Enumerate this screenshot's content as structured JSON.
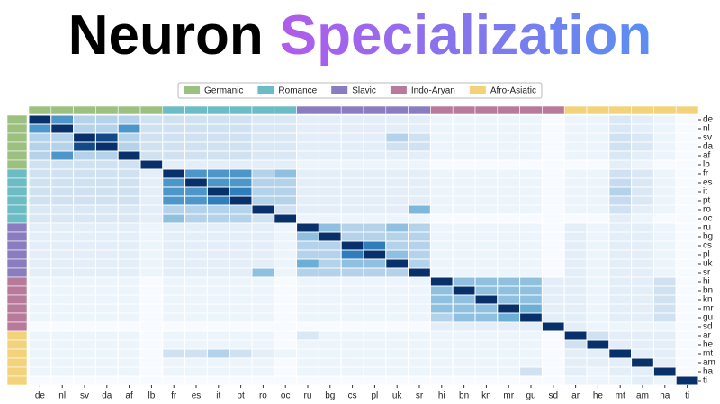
{
  "chart_data": {
    "type": "heatmap",
    "title": [
      "Neuron",
      "Specialization"
    ],
    "title_colors": [
      "#000000",
      "#e23ee6",
      "#5a8ff2"
    ],
    "groups": [
      {
        "name": "Germanic",
        "color": "#9cc07f",
        "languages": [
          "de",
          "nl",
          "sv",
          "da",
          "af",
          "lb"
        ]
      },
      {
        "name": "Romance",
        "color": "#6bbcc4",
        "languages": [
          "fr",
          "es",
          "it",
          "pt",
          "ro",
          "oc"
        ]
      },
      {
        "name": "Slavic",
        "color": "#8a7dbf",
        "languages": [
          "ru",
          "bg",
          "cs",
          "pl",
          "uk",
          "sr"
        ]
      },
      {
        "name": "Indo-Aryan",
        "color": "#b87a9a",
        "languages": [
          "hi",
          "bn",
          "kn",
          "mr",
          "gu",
          "sd"
        ]
      },
      {
        "name": "Afro-Asiatic",
        "color": "#f2d27a",
        "languages": [
          "ar",
          "he",
          "mt",
          "am",
          "ha",
          "ti"
        ]
      }
    ],
    "colorscale": [
      "#f7fbff",
      "#c6dbef",
      "#6baed6",
      "#2171b5",
      "#08306b"
    ],
    "vlim": [
      0,
      1
    ],
    "values": [
      [
        1,
        0.6,
        0.3,
        0.3,
        0.3,
        0.2,
        0.2,
        0.2,
        0.2,
        0.2,
        0.15,
        0.15,
        0.1,
        0.1,
        0.1,
        0.1,
        0.1,
        0.1,
        0.05,
        0.05,
        0.05,
        0.05,
        0.05,
        0,
        0.05,
        0.05,
        0.15,
        0.1,
        0.05,
        0
      ],
      [
        0.6,
        1,
        0.3,
        0.3,
        0.6,
        0.2,
        0.2,
        0.2,
        0.2,
        0.2,
        0.15,
        0.15,
        0.1,
        0.1,
        0.1,
        0.1,
        0.1,
        0.1,
        0.05,
        0.05,
        0.05,
        0.05,
        0.05,
        0,
        0.05,
        0.05,
        0.15,
        0.1,
        0.05,
        0
      ],
      [
        0.3,
        0.3,
        1,
        0.9,
        0.3,
        0.2,
        0.2,
        0.2,
        0.2,
        0.2,
        0.15,
        0.15,
        0.1,
        0.1,
        0.1,
        0.1,
        0.3,
        0.2,
        0.05,
        0.05,
        0.05,
        0.05,
        0.05,
        0,
        0.05,
        0.05,
        0.2,
        0.15,
        0.05,
        0
      ],
      [
        0.3,
        0.3,
        0.9,
        1,
        0.3,
        0.2,
        0.2,
        0.2,
        0.2,
        0.2,
        0.15,
        0.15,
        0.1,
        0.1,
        0.1,
        0.1,
        0.2,
        0.2,
        0.05,
        0.05,
        0.05,
        0.05,
        0.05,
        0,
        0.05,
        0.05,
        0.2,
        0.15,
        0.05,
        0
      ],
      [
        0.3,
        0.6,
        0.3,
        0.3,
        1,
        0.2,
        0.2,
        0.2,
        0.2,
        0.2,
        0.15,
        0.15,
        0.1,
        0.1,
        0.1,
        0.1,
        0.1,
        0.1,
        0.05,
        0.05,
        0.05,
        0.05,
        0.05,
        0,
        0.05,
        0.05,
        0.15,
        0.1,
        0.05,
        0
      ],
      [
        0.2,
        0.2,
        0.2,
        0.2,
        0.2,
        1,
        0.1,
        0.1,
        0.1,
        0.1,
        0.1,
        0.1,
        0.05,
        0.05,
        0.05,
        0.05,
        0.05,
        0.05,
        0,
        0,
        0,
        0,
        0,
        0,
        0,
        0,
        0.1,
        0.05,
        0,
        0
      ],
      [
        0.2,
        0.2,
        0.2,
        0.2,
        0.2,
        0.1,
        1,
        0.6,
        0.6,
        0.6,
        0.3,
        0.4,
        0.1,
        0.1,
        0.1,
        0.1,
        0.1,
        0.1,
        0.05,
        0.05,
        0.05,
        0.05,
        0.05,
        0,
        0.05,
        0.05,
        0.2,
        0.15,
        0.05,
        0
      ],
      [
        0.2,
        0.2,
        0.2,
        0.2,
        0.2,
        0.1,
        0.6,
        1,
        0.6,
        0.6,
        0.3,
        0.3,
        0.1,
        0.1,
        0.1,
        0.1,
        0.1,
        0.1,
        0.05,
        0.05,
        0.05,
        0.05,
        0.05,
        0,
        0.05,
        0.05,
        0.25,
        0.15,
        0.05,
        0
      ],
      [
        0.2,
        0.2,
        0.2,
        0.2,
        0.2,
        0.1,
        0.6,
        0.6,
        1,
        0.7,
        0.3,
        0.3,
        0.1,
        0.1,
        0.1,
        0.1,
        0.1,
        0.1,
        0.05,
        0.05,
        0.05,
        0.05,
        0.05,
        0,
        0.05,
        0.05,
        0.3,
        0.15,
        0.05,
        0
      ],
      [
        0.2,
        0.2,
        0.2,
        0.2,
        0.2,
        0.1,
        0.6,
        0.6,
        0.7,
        1,
        0.3,
        0.3,
        0.1,
        0.1,
        0.1,
        0.1,
        0.1,
        0.1,
        0.05,
        0.05,
        0.05,
        0.05,
        0.05,
        0,
        0.05,
        0.05,
        0.25,
        0.15,
        0.05,
        0
      ],
      [
        0.15,
        0.15,
        0.15,
        0.15,
        0.15,
        0.1,
        0.3,
        0.3,
        0.3,
        0.3,
        1,
        0.2,
        0.1,
        0.1,
        0.1,
        0.1,
        0.1,
        0.45,
        0.05,
        0.05,
        0.05,
        0.05,
        0.05,
        0,
        0.05,
        0.05,
        0.2,
        0.1,
        0.05,
        0
      ],
      [
        0.15,
        0.15,
        0.15,
        0.15,
        0.15,
        0.1,
        0.4,
        0.3,
        0.3,
        0.3,
        0.2,
        1,
        0.05,
        0.05,
        0.05,
        0.05,
        0.05,
        0.05,
        0,
        0,
        0,
        0,
        0,
        0,
        0,
        0,
        0.1,
        0.05,
        0,
        0
      ],
      [
        0.1,
        0.1,
        0.1,
        0.1,
        0.1,
        0.05,
        0.1,
        0.1,
        0.1,
        0.1,
        0.1,
        0.05,
        1,
        0.4,
        0.3,
        0.3,
        0.4,
        0.3,
        0.05,
        0.05,
        0.05,
        0.05,
        0.05,
        0,
        0.1,
        0.05,
        0.1,
        0.1,
        0.05,
        0
      ],
      [
        0.1,
        0.1,
        0.1,
        0.1,
        0.1,
        0.05,
        0.1,
        0.1,
        0.1,
        0.1,
        0.1,
        0.05,
        0.4,
        1,
        0.3,
        0.3,
        0.3,
        0.3,
        0.05,
        0.05,
        0.05,
        0.05,
        0.05,
        0,
        0.1,
        0.05,
        0.1,
        0.1,
        0.05,
        0
      ],
      [
        0.1,
        0.1,
        0.1,
        0.1,
        0.1,
        0.05,
        0.1,
        0.1,
        0.1,
        0.1,
        0.1,
        0.05,
        0.3,
        0.3,
        1,
        0.7,
        0.3,
        0.3,
        0.05,
        0.05,
        0.05,
        0.05,
        0.05,
        0,
        0.1,
        0.05,
        0.1,
        0.1,
        0.05,
        0
      ],
      [
        0.1,
        0.1,
        0.1,
        0.1,
        0.1,
        0.05,
        0.1,
        0.1,
        0.1,
        0.1,
        0.1,
        0.05,
        0.3,
        0.3,
        0.7,
        1,
        0.4,
        0.3,
        0.05,
        0.05,
        0.05,
        0.05,
        0.05,
        0,
        0.1,
        0.05,
        0.1,
        0.1,
        0.05,
        0
      ],
      [
        0.1,
        0.1,
        0.1,
        0.1,
        0.1,
        0.05,
        0.1,
        0.1,
        0.1,
        0.1,
        0.1,
        0.05,
        0.5,
        0.3,
        0.4,
        0.4,
        1,
        0.3,
        0.05,
        0.05,
        0.05,
        0.05,
        0.05,
        0,
        0.1,
        0.05,
        0.1,
        0.1,
        0.05,
        0
      ],
      [
        0.1,
        0.1,
        0.1,
        0.1,
        0.1,
        0.05,
        0.1,
        0.1,
        0.1,
        0.1,
        0.4,
        0.05,
        0.3,
        0.3,
        0.3,
        0.3,
        0.3,
        1,
        0.05,
        0.05,
        0.05,
        0.05,
        0.05,
        0,
        0.1,
        0.05,
        0.1,
        0.1,
        0.05,
        0
      ],
      [
        0.05,
        0.05,
        0.05,
        0.05,
        0.05,
        0,
        0.05,
        0.05,
        0.05,
        0.05,
        0.05,
        0,
        0.05,
        0.05,
        0.05,
        0.05,
        0.05,
        0.05,
        1,
        0.4,
        0.4,
        0.4,
        0.4,
        0.1,
        0.1,
        0.05,
        0.1,
        0.1,
        0.2,
        0
      ],
      [
        0.05,
        0.05,
        0.05,
        0.05,
        0.05,
        0,
        0.05,
        0.05,
        0.05,
        0.05,
        0.05,
        0,
        0.05,
        0.05,
        0.05,
        0.05,
        0.05,
        0.05,
        0.4,
        1,
        0.4,
        0.4,
        0.4,
        0.1,
        0.1,
        0.05,
        0.1,
        0.1,
        0.2,
        0
      ],
      [
        0.05,
        0.05,
        0.05,
        0.05,
        0.05,
        0,
        0.05,
        0.05,
        0.05,
        0.05,
        0.05,
        0,
        0.05,
        0.05,
        0.05,
        0.05,
        0.05,
        0.05,
        0.4,
        0.4,
        1,
        0.4,
        0.4,
        0.1,
        0.1,
        0.05,
        0.1,
        0.1,
        0.2,
        0
      ],
      [
        0.05,
        0.05,
        0.05,
        0.05,
        0.05,
        0,
        0.05,
        0.05,
        0.05,
        0.05,
        0.05,
        0,
        0.05,
        0.05,
        0.05,
        0.05,
        0.05,
        0.05,
        0.4,
        0.4,
        0.4,
        1,
        0.5,
        0.1,
        0.1,
        0.05,
        0.1,
        0.1,
        0.2,
        0
      ],
      [
        0.05,
        0.05,
        0.05,
        0.05,
        0.05,
        0,
        0.05,
        0.05,
        0.05,
        0.05,
        0.05,
        0,
        0.05,
        0.05,
        0.05,
        0.05,
        0.05,
        0.05,
        0.3,
        0.4,
        0.4,
        0.5,
        1,
        0.1,
        0.1,
        0.05,
        0.1,
        0.1,
        0.2,
        0
      ],
      [
        0,
        0,
        0,
        0,
        0,
        0,
        0,
        0,
        0,
        0,
        0,
        0,
        0,
        0,
        0,
        0,
        0,
        0,
        0.1,
        0.1,
        0.1,
        0.1,
        0.1,
        1,
        0.1,
        0.05,
        0.05,
        0.05,
        0.05,
        0
      ],
      [
        0.05,
        0.05,
        0.05,
        0.05,
        0.05,
        0,
        0.05,
        0.05,
        0.05,
        0.05,
        0.05,
        0,
        0.15,
        0.05,
        0.05,
        0.05,
        0.05,
        0.05,
        0.05,
        0.05,
        0.05,
        0.05,
        0.05,
        0,
        1,
        0.2,
        0.1,
        0.1,
        0.1,
        0
      ],
      [
        0.05,
        0.05,
        0.05,
        0.05,
        0.05,
        0,
        0.05,
        0.05,
        0.05,
        0.05,
        0.05,
        0,
        0.05,
        0.05,
        0.05,
        0.05,
        0.05,
        0.05,
        0.05,
        0.05,
        0.05,
        0.05,
        0.05,
        0,
        0.2,
        1,
        0.1,
        0.1,
        0.1,
        0
      ],
      [
        0.05,
        0.05,
        0.05,
        0.05,
        0.05,
        0,
        0.2,
        0.2,
        0.3,
        0.2,
        0.1,
        0.05,
        0.05,
        0.05,
        0.05,
        0.05,
        0.05,
        0.05,
        0.05,
        0.05,
        0.05,
        0.05,
        0.05,
        0,
        0.1,
        0.1,
        1,
        0.1,
        0.1,
        0
      ],
      [
        0.05,
        0.05,
        0.05,
        0.05,
        0.05,
        0,
        0.05,
        0.05,
        0.05,
        0.05,
        0.05,
        0,
        0.05,
        0.05,
        0.05,
        0.05,
        0.05,
        0.05,
        0.05,
        0.05,
        0.05,
        0.05,
        0.05,
        0,
        0.1,
        0.1,
        0.1,
        1,
        0.1,
        0
      ],
      [
        0.05,
        0.05,
        0.05,
        0.05,
        0.05,
        0,
        0.05,
        0.05,
        0.05,
        0.05,
        0.05,
        0,
        0.05,
        0.05,
        0.05,
        0.05,
        0.05,
        0.05,
        0.05,
        0.05,
        0.05,
        0.05,
        0.2,
        0,
        0.1,
        0.05,
        0.1,
        0.1,
        1,
        0
      ],
      [
        0,
        0,
        0,
        0,
        0,
        0,
        0,
        0,
        0,
        0,
        0,
        0,
        0,
        0,
        0,
        0,
        0,
        0,
        0,
        0,
        0,
        0,
        0,
        0,
        0.05,
        0.05,
        0.05,
        0.1,
        0.05,
        1
      ]
    ]
  }
}
